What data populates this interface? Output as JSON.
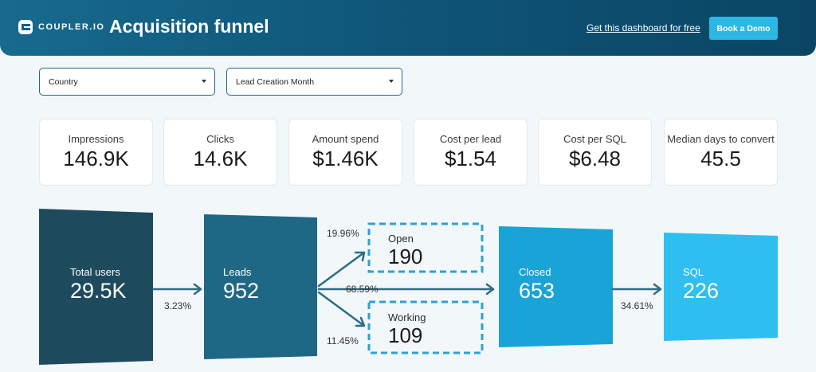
{
  "header": {
    "logo_text": "COUPLER.IO",
    "title": "Acquisition funnel",
    "link": "Get this dashboard for free",
    "button": "Book a Demo"
  },
  "filters": {
    "country": "Country",
    "month": "Lead Creation Month"
  },
  "kpis": [
    {
      "label": "Impressions",
      "value": "146.9K"
    },
    {
      "label": "Clicks",
      "value": "14.6K"
    },
    {
      "label": "Amount spend",
      "value": "$1.46K"
    },
    {
      "label": "Cost per lead",
      "value": "$1.54"
    },
    {
      "label": "Cost per SQL",
      "value": "$6.48"
    },
    {
      "label": "Median days to convert",
      "value": "45.5"
    }
  ],
  "funnel": {
    "total_users": {
      "label": "Total users",
      "value": "29.5K"
    },
    "leads": {
      "label": "Leads",
      "value": "952"
    },
    "open": {
      "label": "Open",
      "value": "190"
    },
    "working": {
      "label": "Working",
      "value": "109"
    },
    "closed": {
      "label": "Closed",
      "value": "653"
    },
    "sql": {
      "label": "SQL",
      "value": "226"
    },
    "pct_users_leads": "3.23%",
    "pct_open": "19.96%",
    "pct_closed": "68.59%",
    "pct_working": "11.45%",
    "pct_sql": "34.61%"
  },
  "colors": {
    "header": "#0f5578",
    "accent_button": "#2bb8e5",
    "total_users": "#1e4a5e",
    "leads": "#1f6885",
    "closed": "#1aa3d6",
    "sql": "#2ebff0",
    "dashed": "#2aa3cf",
    "arrow": "#2e6b86"
  }
}
